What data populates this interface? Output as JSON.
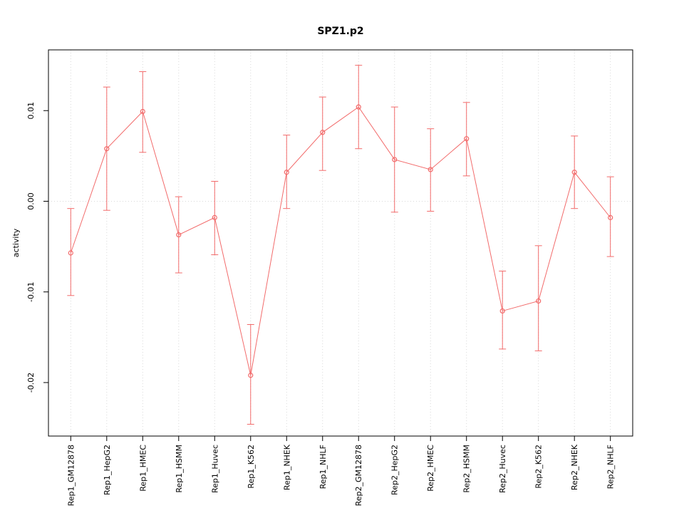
{
  "chart_data": {
    "type": "line",
    "title": "SPZ1.p2",
    "ylabel": "activity",
    "xlabel": "",
    "categories": [
      "Rep1_GM12878",
      "Rep1_HepG2",
      "Rep1_HMEC",
      "Rep1_HSMM",
      "Rep1_Huvec",
      "Rep1_K562",
      "Rep1_NHEK",
      "Rep1_NHLF",
      "Rep2_GM12878",
      "Rep2_HepG2",
      "Rep2_HMEC",
      "Rep2_HSMM",
      "Rep2_Huvec",
      "Rep2_K562",
      "Rep2_NHEK",
      "Rep2_NHLF"
    ],
    "series": [
      {
        "name": "activity",
        "values": [
          -0.0057,
          0.0058,
          0.0099,
          -0.0037,
          -0.0018,
          -0.0192,
          0.0032,
          0.0076,
          0.0104,
          0.0046,
          0.0035,
          0.0069,
          -0.0121,
          -0.011,
          0.0032,
          -0.0018
        ],
        "error_upper": [
          -0.0008,
          0.0126,
          0.0143,
          0.0005,
          0.0022,
          -0.0136,
          0.0073,
          0.0115,
          0.015,
          0.0104,
          0.008,
          0.0109,
          -0.0077,
          -0.0049,
          0.0072,
          0.0027
        ],
        "error_lower": [
          -0.0104,
          -0.001,
          0.0054,
          -0.0079,
          -0.0059,
          -0.0246,
          -0.0008,
          0.0034,
          0.0058,
          -0.0012,
          -0.0011,
          0.0028,
          -0.0163,
          -0.0165,
          -0.0008,
          -0.0061
        ]
      }
    ],
    "marker": "open-circle",
    "error_bars": true,
    "y_ticks": [
      0.01,
      0,
      -0.01,
      -0.02
    ],
    "y_tick_labels": [
      "0.01",
      "0.00",
      "-0.01",
      "-0.02"
    ],
    "ylim": [
      -0.0259,
      0.0167
    ],
    "grid": {
      "vertical": "dotted line at each category",
      "horizontal_at": [
        0
      ],
      "style": "dotted"
    },
    "legend": "none",
    "colors": {
      "series": "#f26b6b",
      "grid": "#d9d9d9",
      "axis": "#000000"
    }
  }
}
